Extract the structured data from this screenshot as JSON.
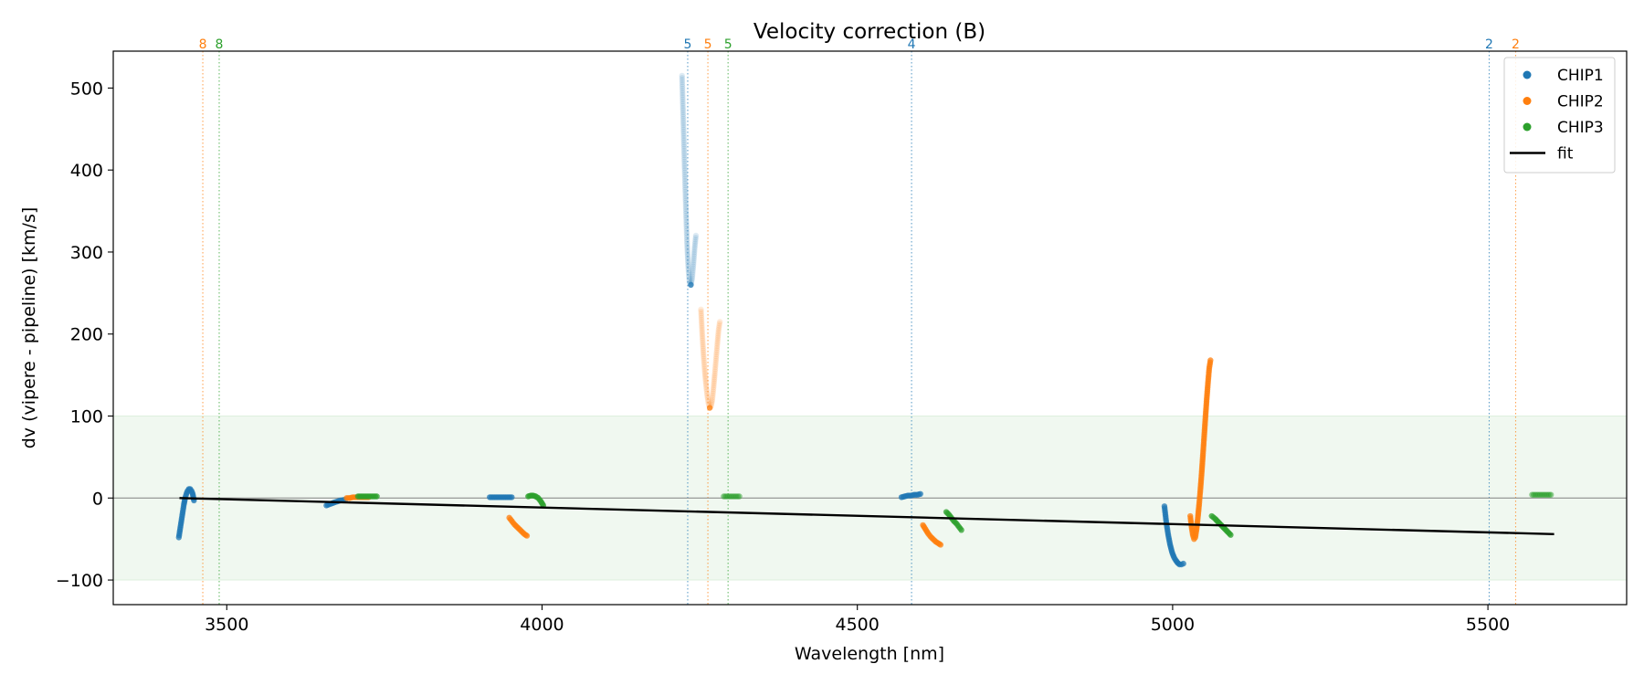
{
  "chart_data": {
    "type": "scatter",
    "title": "Velocity correction (B)",
    "xlabel": "Wavelength [nm]",
    "ylabel": "dv (vipere - pipeline) [km/s]",
    "xlim": [
      3320,
      5720
    ],
    "ylim": [
      -130,
      545
    ],
    "xticks": [
      3500,
      4000,
      4500,
      5000,
      5500
    ],
    "yticks": [
      -100,
      0,
      100,
      200,
      300,
      400,
      500
    ],
    "grid": false,
    "legend_position": "top-right",
    "colors": {
      "CHIP1": "#1f77b4",
      "CHIP2": "#ff7f0e",
      "CHIP3": "#2ca02c",
      "fit": "#000000",
      "band": "#2ca02c",
      "zero": "#808080"
    },
    "band": [
      -100,
      100
    ],
    "zero_line": 0,
    "legend": [
      {
        "label": "CHIP1",
        "kind": "marker",
        "color": "#1f77b4"
      },
      {
        "label": "CHIP2",
        "kind": "marker",
        "color": "#ff7f0e"
      },
      {
        "label": "CHIP3",
        "kind": "marker",
        "color": "#2ca02c"
      },
      {
        "label": "fit",
        "kind": "line",
        "color": "#000000"
      }
    ],
    "order_lines": [
      {
        "x": 3462,
        "label": "8",
        "series": "CHIP2"
      },
      {
        "x": 3488,
        "label": "8",
        "series": "CHIP3"
      },
      {
        "x": 4231,
        "label": "5",
        "series": "CHIP1"
      },
      {
        "x": 4263,
        "label": "5",
        "series": "CHIP2"
      },
      {
        "x": 4295,
        "label": "5",
        "series": "CHIP3"
      },
      {
        "x": 4586,
        "label": "4",
        "series": "CHIP1"
      },
      {
        "x": 5502,
        "label": "2",
        "series": "CHIP1"
      },
      {
        "x": 5544,
        "label": "2",
        "series": "CHIP2"
      }
    ],
    "fit": {
      "x": [
        3425,
        5605
      ],
      "y": [
        0,
        -44
      ]
    },
    "series": [
      {
        "name": "CHIP1",
        "segments": [
          {
            "alpha": 0.75,
            "x": [
              3424,
              3426,
              3428,
              3430,
              3432,
              3434,
              3436,
              3438,
              3440,
              3442,
              3444,
              3446,
              3448
            ],
            "y": [
              -48,
              -38,
              -28,
              -18,
              -8,
              0,
              5,
              9,
              11,
              11,
              9,
              5,
              -3
            ]
          },
          {
            "alpha": 0.75,
            "x": [
              3658,
              3665,
              3672,
              3680,
              3688
            ],
            "y": [
              -9,
              -7,
              -5,
              -3,
              -2
            ]
          },
          {
            "alpha": 0.75,
            "x": [
              3917,
              3922,
              3927,
              3932,
              3937,
              3942,
              3947,
              3952
            ],
            "y": [
              1,
              1,
              1,
              1,
              1,
              1,
              1,
              1
            ]
          },
          {
            "alpha": 0.15,
            "x": [
              4222,
              4224,
              4226,
              4228,
              4230,
              4232,
              4234,
              4236,
              4238,
              4240,
              4242,
              4244
            ],
            "y": [
              515,
              460,
              405,
              355,
              310,
              280,
              262,
              260,
              268,
              285,
              305,
              320
            ]
          },
          {
            "alpha": 0.75,
            "x": [
              4236
            ],
            "y": [
              260
            ]
          },
          {
            "alpha": 0.75,
            "x": [
              4570,
              4575,
              4580,
              4585,
              4590,
              4595,
              4600
            ],
            "y": [
              1,
              2,
              3,
              3,
              4,
              4,
              5
            ]
          },
          {
            "alpha": 0.75,
            "x": [
              4987,
              4990,
              4993,
              4996,
              4999,
              5002,
              5005,
              5008,
              5011,
              5014,
              5017
            ],
            "y": [
              -10,
              -30,
              -45,
              -57,
              -66,
              -72,
              -76,
              -79,
              -81,
              -81,
              -80
            ]
          }
        ]
      },
      {
        "name": "CHIP2",
        "segments": [
          {
            "alpha": 0.75,
            "x": [
              3690,
              3695,
              3700,
              3705,
              3710,
              3715,
              3720,
              3725
            ],
            "y": [
              0,
              0,
              1,
              1,
              1,
              1,
              1,
              1
            ]
          },
          {
            "alpha": 0.75,
            "x": [
              3948,
              3952,
              3956,
              3960,
              3964,
              3968,
              3972,
              3976
            ],
            "y": [
              -24,
              -28,
              -32,
              -35,
              -38,
              -41,
              -44,
              -46
            ]
          },
          {
            "alpha": 0.15,
            "x": [
              4252,
              4254,
              4256,
              4258,
              4260,
              4262,
              4264,
              4266,
              4268,
              4270,
              4272,
              4274,
              4276,
              4278,
              4280,
              4282
            ],
            "y": [
              230,
              200,
              175,
              155,
              138,
              125,
              115,
              110,
              112,
              120,
              135,
              152,
              170,
              188,
              205,
              215
            ]
          },
          {
            "alpha": 0.75,
            "x": [
              4266
            ],
            "y": [
              110
            ]
          },
          {
            "alpha": 0.75,
            "x": [
              4604,
              4608,
              4612,
              4616,
              4620,
              4624,
              4628,
              4632
            ],
            "y": [
              -33,
              -38,
              -43,
              -47,
              -50,
              -53,
              -55,
              -57
            ]
          },
          {
            "alpha": 0.75,
            "x": [
              5028,
              5030,
              5032,
              5034,
              5036,
              5038,
              5040,
              5042,
              5044,
              5046,
              5048,
              5050,
              5052,
              5054,
              5056,
              5058,
              5060
            ],
            "y": [
              -22,
              -35,
              -45,
              -50,
              -48,
              -38,
              -24,
              -8,
              10,
              30,
              52,
              75,
              98,
              120,
              140,
              158,
              168
            ]
          }
        ]
      },
      {
        "name": "CHIP3",
        "segments": [
          {
            "alpha": 0.75,
            "x": [
              3708,
              3713,
              3718,
              3723,
              3728,
              3733,
              3738
            ],
            "y": [
              2,
              2,
              2,
              2,
              2,
              2,
              2
            ]
          },
          {
            "alpha": 0.75,
            "x": [
              3978,
              3982,
              3986,
              3990,
              3994,
              3998,
              4002
            ],
            "y": [
              2,
              3,
              3,
              2,
              0,
              -4,
              -9
            ]
          },
          {
            "alpha": 0.5,
            "x": [
              4288,
              4293,
              4298,
              4303,
              4308,
              4313
            ],
            "y": [
              2,
              2,
              2,
              2,
              2,
              2
            ]
          },
          {
            "alpha": 0.75,
            "x": [
              4641,
              4645,
              4649,
              4653,
              4657,
              4661,
              4665
            ],
            "y": [
              -17,
              -20,
              -24,
              -28,
              -31,
              -35,
              -39
            ]
          },
          {
            "alpha": 0.75,
            "x": [
              5062,
              5067,
              5072,
              5077,
              5082,
              5087,
              5092
            ],
            "y": [
              -22,
              -25,
              -29,
              -33,
              -37,
              -41,
              -45
            ]
          },
          {
            "alpha": 0.5,
            "x": [
              5570,
              5575,
              5580,
              5585,
              5590,
              5595,
              5600
            ],
            "y": [
              4,
              4,
              4,
              4,
              4,
              4,
              4
            ]
          }
        ]
      }
    ]
  }
}
